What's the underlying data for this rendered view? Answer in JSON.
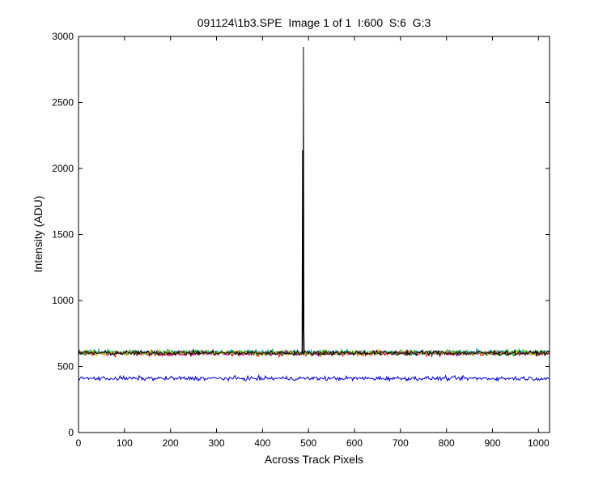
{
  "chart_data": {
    "type": "line",
    "title": "091124\\1b3.SPE  Image 1 of 1  I:600  S:6  G:3",
    "xlabel": "Across Track Pixels",
    "ylabel": "Intensity (ADU)",
    "xlim": [
      0,
      1024
    ],
    "ylim": [
      0,
      3000
    ],
    "x_ticks": [
      0,
      100,
      200,
      300,
      400,
      500,
      600,
      700,
      800,
      900,
      1000
    ],
    "y_ticks": [
      0,
      500,
      1000,
      1500,
      2000,
      2500,
      3000
    ],
    "grid": false,
    "legend": "none",
    "series": [
      {
        "color": "#ff0000",
        "baseline": 600,
        "noise": 10,
        "peak": null
      },
      {
        "color": "#00aa00",
        "baseline": 605,
        "noise": 10,
        "peak": null
      },
      {
        "color": "#00aaaa",
        "baseline": 608,
        "noise": 10,
        "peak": null
      },
      {
        "color": "#aa00aa",
        "baseline": 600,
        "noise": 8,
        "peak": null
      },
      {
        "color": "#cccc00",
        "baseline": 603,
        "noise": 8,
        "peak": null
      },
      {
        "color": "#000000",
        "baseline": 603,
        "noise": 9,
        "peak": {
          "points": [
            [
              486,
              603
            ],
            [
              487,
              2140
            ],
            [
              488,
              603
            ],
            [
              489,
              2920
            ],
            [
              490,
              780
            ],
            [
              491,
              603
            ]
          ]
        }
      },
      {
        "color": "#0000cc",
        "baseline": 410,
        "noise": 8,
        "peak": null
      }
    ]
  }
}
